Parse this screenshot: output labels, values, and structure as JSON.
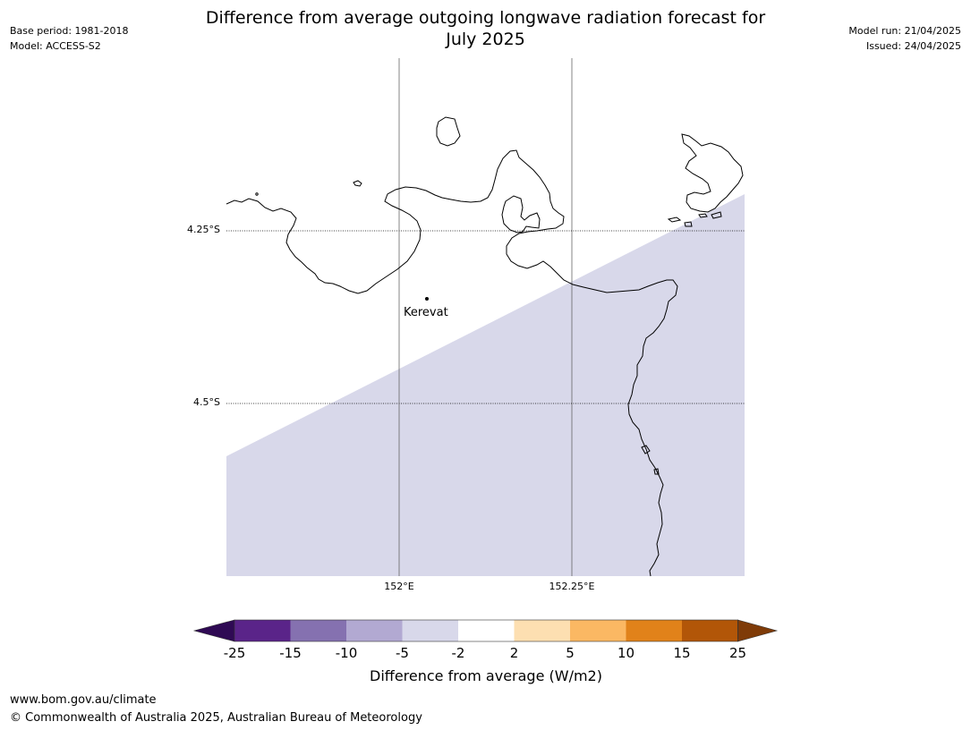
{
  "title_line1": "Difference from average outgoing longwave radiation forecast for",
  "title_line2": "July 2025",
  "meta_left": {
    "base_period": "Base period: 1981-2018",
    "model": "Model: ACCESS-S2"
  },
  "meta_right": {
    "model_run": "Model run: 21/04/2025",
    "issued": "Issued: 24/04/2025"
  },
  "map": {
    "lat_labels": [
      "4.25°S",
      "4.5°S"
    ],
    "lon_labels": [
      "152°E",
      "152.25°E"
    ],
    "place": "Kerevat",
    "anomaly_fill_color": "#d8d8ea",
    "anomaly_category": "-5 to -2"
  },
  "colorbar": {
    "ticks": [
      "-25",
      "-15",
      "-10",
      "-5",
      "-2",
      "2",
      "5",
      "10",
      "15",
      "25"
    ],
    "colors": [
      "#5a2489",
      "#8571b0",
      "#b2a9d2",
      "#d8d8ea",
      "#ffffff",
      "#fddfb1",
      "#fbb863",
      "#e1821a",
      "#b25608"
    ],
    "under_color": "#2f0a54",
    "over_color": "#7f3b08",
    "label": "Difference from average (W/m2)"
  },
  "footer": {
    "url": "www.bom.gov.au/climate",
    "copyright": "© Commonwealth of Australia 2025, Australian Bureau of Meteorology"
  }
}
